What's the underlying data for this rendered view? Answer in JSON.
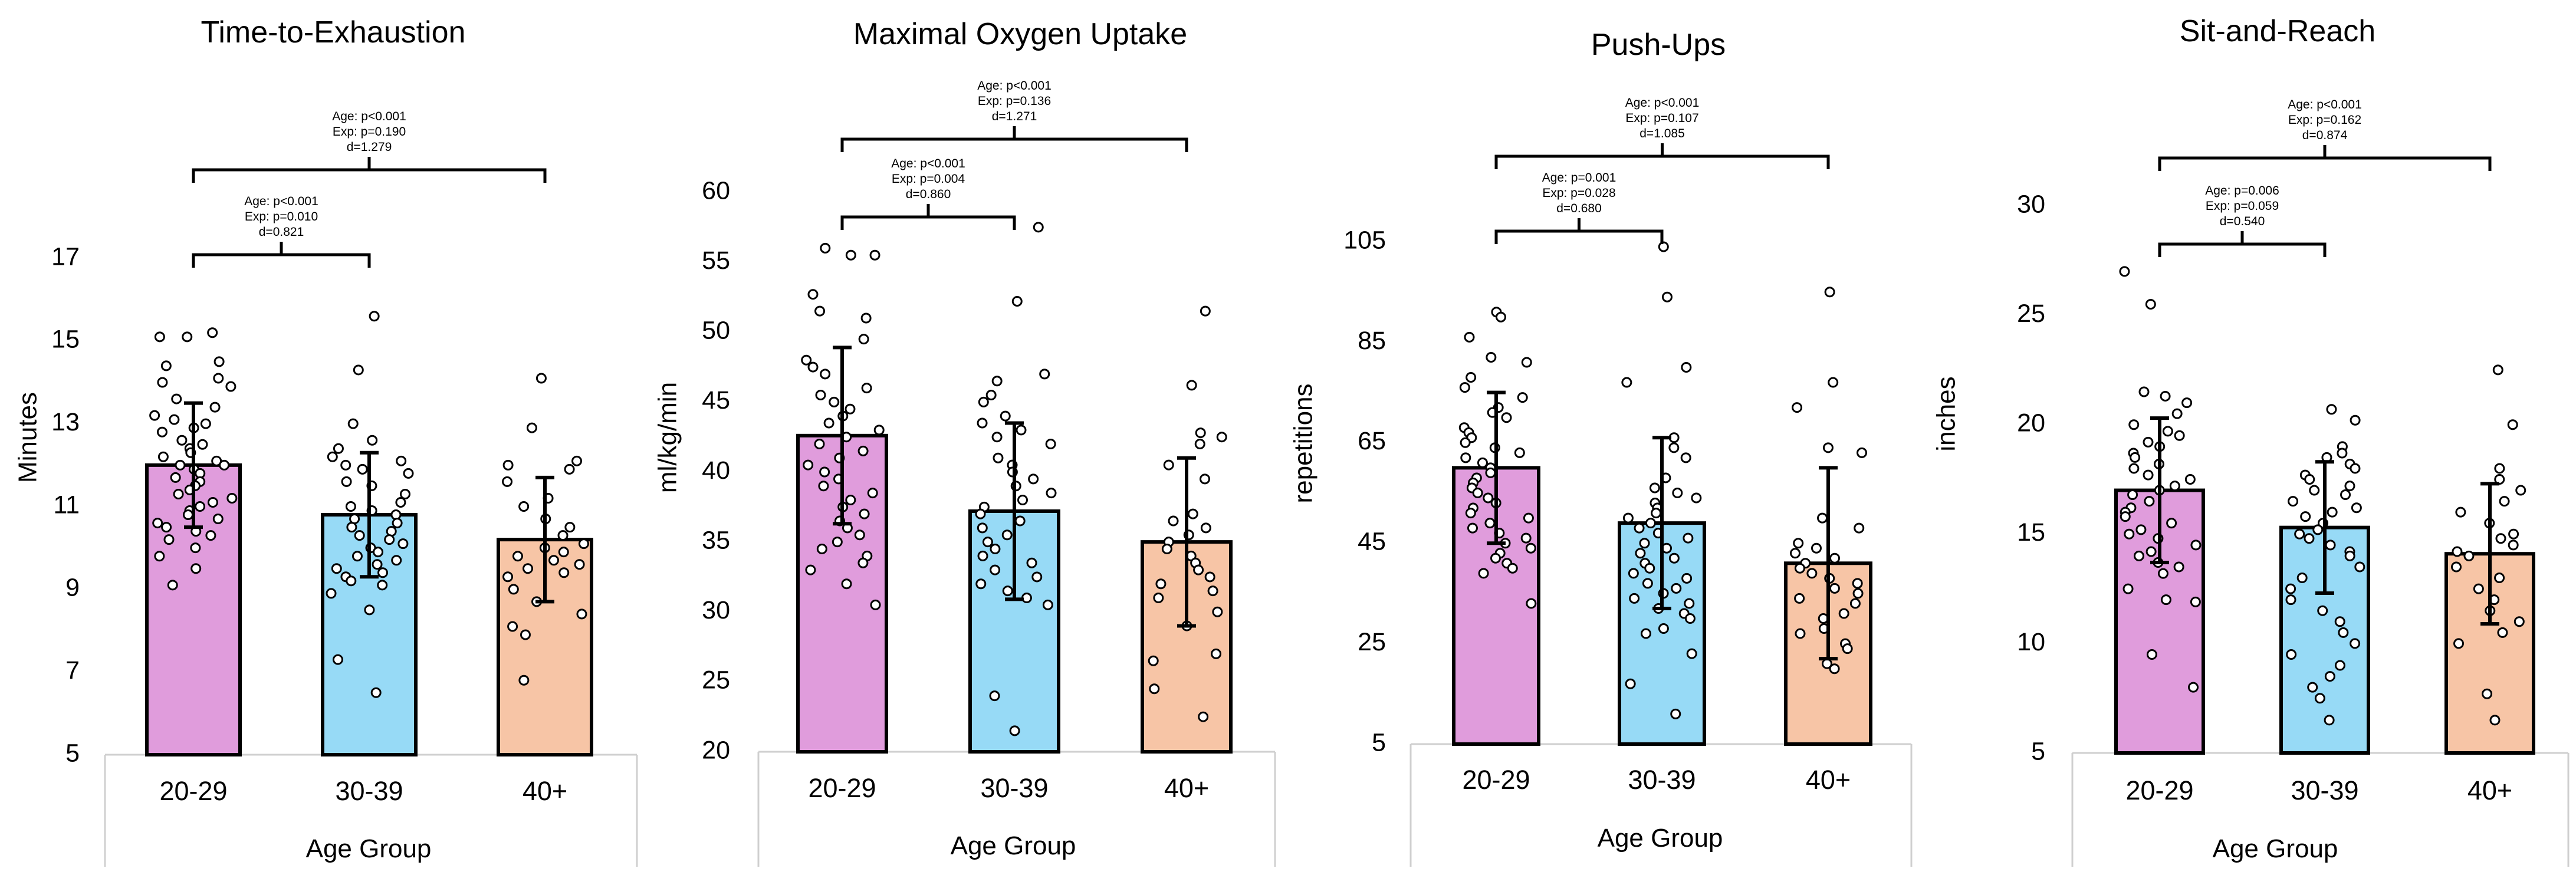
{
  "chart_data": [
    {
      "type": "bar",
      "title": "Time-to-Exhaustion",
      "xlabel": "Age Group",
      "ylabel": "Minutes",
      "ylim": [
        5,
        17
      ],
      "yticks": [
        5,
        7,
        9,
        11,
        13,
        15,
        17
      ],
      "categories": [
        "20-29",
        "30-39",
        "40+"
      ],
      "values": [
        12.0,
        10.8,
        10.2
      ],
      "error": [
        1.5,
        1.5,
        1.5
      ],
      "colors": [
        "#e09cdc",
        "#97daf6",
        "#f7c5a6"
      ],
      "points": [
        [
          15.2,
          15.1,
          15.1,
          14.5,
          14.4,
          14.1,
          14.0,
          13.9,
          13.6,
          13.4,
          13.2,
          13.1,
          13.0,
          12.9,
          12.8,
          12.6,
          12.5,
          12.4,
          12.3,
          12.2,
          12.1,
          12.0,
          12.0,
          11.9,
          11.8,
          11.7,
          11.6,
          11.5,
          11.4,
          11.3,
          11.2,
          11.1,
          11.0,
          10.9,
          10.8,
          10.7,
          10.6,
          10.5,
          10.4,
          10.3,
          10.2,
          10.0,
          9.8,
          9.5,
          9.1
        ],
        [
          15.6,
          14.3,
          13.0,
          12.6,
          12.4,
          12.2,
          12.1,
          12.0,
          11.9,
          11.8,
          11.6,
          11.5,
          11.3,
          11.1,
          11.0,
          10.9,
          10.8,
          10.7,
          10.6,
          10.5,
          10.4,
          10.3,
          10.2,
          10.1,
          10.0,
          9.9,
          9.8,
          9.7,
          9.6,
          9.5,
          9.4,
          9.3,
          9.2,
          9.1,
          8.9,
          8.5,
          7.3,
          6.5
        ],
        [
          14.1,
          12.9,
          12.1,
          12.0,
          11.9,
          11.6,
          11.2,
          11.0,
          10.7,
          10.5,
          10.3,
          10.1,
          10.0,
          9.9,
          9.8,
          9.7,
          9.6,
          9.5,
          9.4,
          9.3,
          9.0,
          8.7,
          8.4,
          8.1,
          7.9,
          6.8
        ]
      ],
      "comparisons": [
        {
          "from": "20-29",
          "to": "30-39",
          "lines": [
            "Age: p<0.001",
            "Exp: p=0.010",
            "d=0.821"
          ]
        },
        {
          "from": "20-29",
          "to": "40+",
          "lines": [
            "Age: p<0.001",
            "Exp: p=0.190",
            "d=1.279"
          ]
        }
      ]
    },
    {
      "type": "bar",
      "title": "Maximal Oxygen Uptake",
      "xlabel": "Age Group",
      "ylabel": "ml/kg/min",
      "ylim": [
        20,
        60
      ],
      "yticks": [
        20,
        25,
        30,
        35,
        40,
        45,
        50,
        55,
        60
      ],
      "categories": [
        "20-29",
        "30-39",
        "40+"
      ],
      "values": [
        42.6,
        37.2,
        35.0
      ],
      "error": [
        6.3,
        6.3,
        6.0
      ],
      "colors": [
        "#e09cdc",
        "#97daf6",
        "#f7c5a6"
      ],
      "points": [
        [
          56.0,
          55.5,
          55.5,
          52.7,
          51.5,
          51.0,
          49.5,
          48.0,
          47.5,
          47.0,
          46.0,
          45.5,
          45.0,
          44.5,
          44.0,
          43.5,
          43.0,
          42.5,
          42.0,
          41.5,
          41.0,
          40.5,
          40.0,
          39.5,
          39.0,
          38.5,
          38.0,
          37.5,
          37.0,
          36.5,
          36.0,
          35.5,
          35.0,
          34.5,
          34.0,
          33.5,
          33.0,
          32.0,
          30.5
        ],
        [
          57.5,
          52.2,
          47.0,
          46.5,
          45.5,
          45.0,
          44.0,
          43.5,
          43.0,
          42.5,
          42.0,
          41.0,
          40.5,
          40.0,
          39.5,
          39.0,
          38.5,
          38.0,
          37.5,
          37.0,
          36.5,
          36.0,
          35.5,
          35.0,
          34.5,
          34.0,
          33.5,
          33.0,
          32.5,
          32.0,
          31.5,
          31.0,
          30.5,
          24.0,
          21.5
        ],
        [
          51.5,
          46.2,
          42.8,
          42.5,
          42.0,
          40.5,
          39.5,
          37.0,
          36.5,
          36.0,
          35.5,
          35.0,
          34.5,
          34.0,
          33.5,
          33.0,
          32.5,
          32.0,
          31.5,
          31.0,
          30.0,
          29.0,
          27.0,
          26.5,
          24.5,
          22.5
        ]
      ],
      "comparisons": [
        {
          "from": "20-29",
          "to": "30-39",
          "lines": [
            "Age: p<0.001",
            "Exp: p=0.004",
            "d=0.860"
          ]
        },
        {
          "from": "20-29",
          "to": "40+",
          "lines": [
            "Age: p<0.001",
            "Exp: p=0.136",
            "d=1.271"
          ]
        }
      ]
    },
    {
      "type": "bar",
      "title": "Push-Ups",
      "xlabel": "Age Group",
      "ylabel": "repetitions",
      "ylim": [
        5,
        105
      ],
      "yticks": [
        5,
        25,
        45,
        65,
        85,
        105
      ],
      "categories": [
        "20-29",
        "30-39",
        "40+"
      ],
      "values": [
        60,
        49,
        41
      ],
      "error": [
        15,
        17,
        19
      ],
      "colors": [
        "#e09cdc",
        "#97daf6",
        "#f7c5a6"
      ],
      "points": [
        [
          91,
          90,
          86,
          82,
          81,
          78,
          76,
          74,
          72,
          71,
          70,
          68,
          67,
          66,
          65,
          64,
          63,
          62,
          61,
          60,
          59,
          58,
          57,
          56,
          55,
          54,
          53,
          52,
          51,
          50,
          49,
          48,
          47,
          46,
          45,
          44,
          43,
          42,
          41,
          40,
          39,
          33
        ],
        [
          104,
          94,
          80,
          77,
          66,
          64,
          62,
          58,
          56,
          55,
          54,
          53,
          52,
          51,
          50,
          49,
          48,
          47,
          46,
          45,
          44,
          43,
          42,
          41,
          40,
          39,
          38,
          37,
          36,
          35,
          34,
          33,
          32,
          31,
          30,
          28,
          27,
          23,
          17,
          11
        ],
        [
          95,
          77,
          72,
          64,
          63,
          50,
          48,
          45,
          44,
          43,
          42,
          41,
          40,
          39,
          38,
          37,
          36,
          35,
          34,
          33,
          31,
          30,
          28,
          27,
          25,
          24,
          21,
          20
        ]
      ],
      "comparisons": [
        {
          "from": "20-29",
          "to": "30-39",
          "lines": [
            "Age: p=0.001",
            "Exp: p=0.028",
            "d=0.680"
          ]
        },
        {
          "from": "20-29",
          "to": "40+",
          "lines": [
            "Age: p<0.001",
            "Exp: p=0.107",
            "d=1.085"
          ]
        }
      ]
    },
    {
      "type": "bar",
      "title": "Sit-and-Reach",
      "xlabel": "Age Group",
      "ylabel": "inches",
      "ylim": [
        5,
        30
      ],
      "yticks": [
        5,
        10,
        15,
        20,
        25,
        30
      ],
      "categories": [
        "20-29",
        "30-39",
        "40+"
      ],
      "values": [
        17.0,
        15.3,
        14.1
      ],
      "error": [
        3.3,
        3.0,
        3.2
      ],
      "colors": [
        "#e09cdc",
        "#97daf6",
        "#f7c5a6"
      ],
      "points": [
        [
          27.0,
          25.5,
          21.5,
          21.3,
          21.0,
          20.5,
          20.0,
          19.7,
          19.5,
          19.2,
          19.0,
          18.7,
          18.5,
          18.2,
          18.0,
          17.7,
          17.5,
          17.2,
          17.0,
          16.8,
          16.5,
          16.2,
          16.0,
          15.8,
          15.5,
          15.2,
          15.0,
          14.8,
          14.5,
          14.2,
          14.0,
          13.7,
          13.5,
          13.2,
          12.5,
          12.0,
          11.9,
          9.5,
          8.0
        ],
        [
          20.7,
          20.2,
          19.0,
          18.7,
          18.5,
          18.2,
          18.0,
          17.7,
          17.5,
          17.2,
          17.0,
          16.8,
          16.5,
          16.2,
          16.0,
          15.8,
          15.5,
          15.2,
          15.0,
          14.8,
          14.5,
          14.2,
          14.0,
          13.5,
          13.0,
          12.5,
          12.0,
          11.5,
          11.0,
          10.5,
          10.0,
          9.5,
          9.0,
          8.5,
          8.0,
          7.5,
          6.5
        ],
        [
          22.5,
          20.0,
          18.0,
          17.5,
          17.0,
          16.5,
          16.0,
          15.5,
          15.0,
          14.8,
          14.5,
          14.2,
          14.0,
          13.5,
          13.0,
          12.5,
          12.0,
          11.5,
          11.0,
          10.5,
          10.0,
          7.7,
          6.5
        ]
      ],
      "comparisons": [
        {
          "from": "20-29",
          "to": "30-39",
          "lines": [
            "Age: p=0.006",
            "Exp: p=0.059",
            "d=0.540"
          ]
        },
        {
          "from": "20-29",
          "to": "40+",
          "lines": [
            "Age: p<0.001",
            "Exp: p=0.162",
            "d=0.874"
          ]
        }
      ]
    }
  ]
}
